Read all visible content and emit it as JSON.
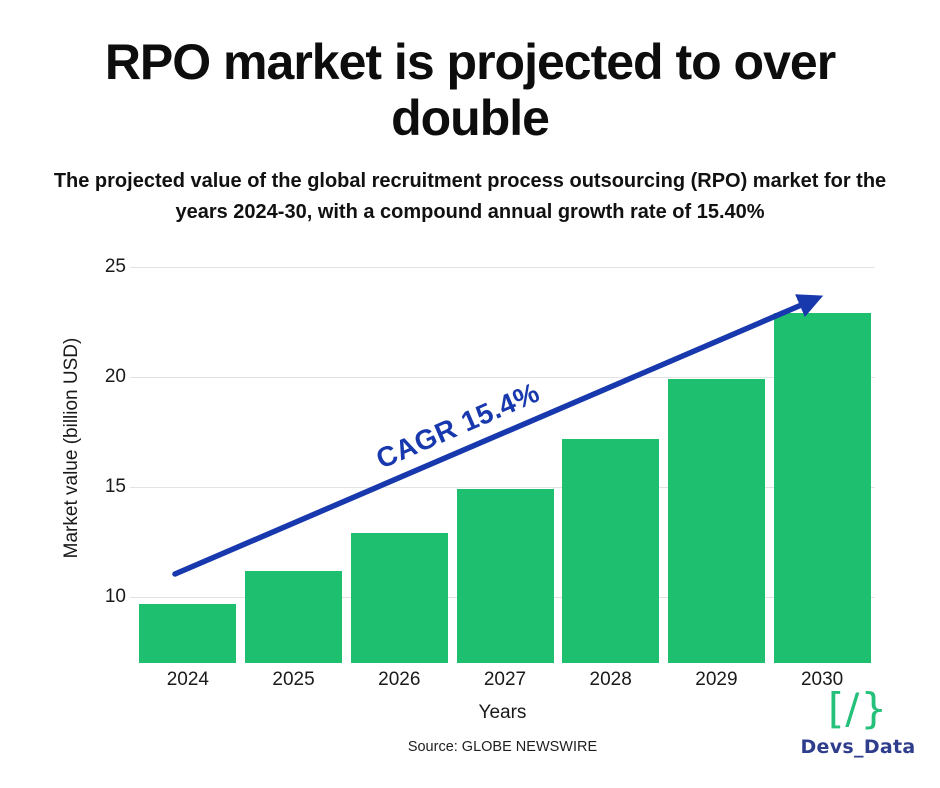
{
  "header": {
    "title": "RPO market is projected to over double",
    "subtitle": "The projected value of the global recruitment process outsourcing (RPO) market for the years 2024-30, with a compound annual growth rate of 15.40%"
  },
  "chart_data": {
    "type": "bar",
    "categories": [
      "2024",
      "2025",
      "2026",
      "2027",
      "2028",
      "2029",
      "2030"
    ],
    "values": [
      9.7,
      11.2,
      12.9,
      14.9,
      17.2,
      19.9,
      22.9
    ],
    "title": "RPO market is projected to over double",
    "xlabel": "Years",
    "ylabel": "Market value (billion USD)",
    "yticks": [
      10,
      15,
      20,
      25
    ],
    "ylim": [
      7,
      25.5
    ],
    "grid": true,
    "legend": false,
    "bar_color": "#1ec06f",
    "grid_color": "#e3e3e3",
    "annotation": {
      "label": "CAGR 15.4%",
      "color": "#1838ad",
      "shape": "arrow-up-right"
    }
  },
  "footer": {
    "source": "Source: GLOBE NEWSWIRE",
    "brand_icon": "[/}",
    "brand_icon_color": "#25c17a",
    "brand_name": "Devs_Data",
    "brand_name_color": "#2f3e8c"
  }
}
